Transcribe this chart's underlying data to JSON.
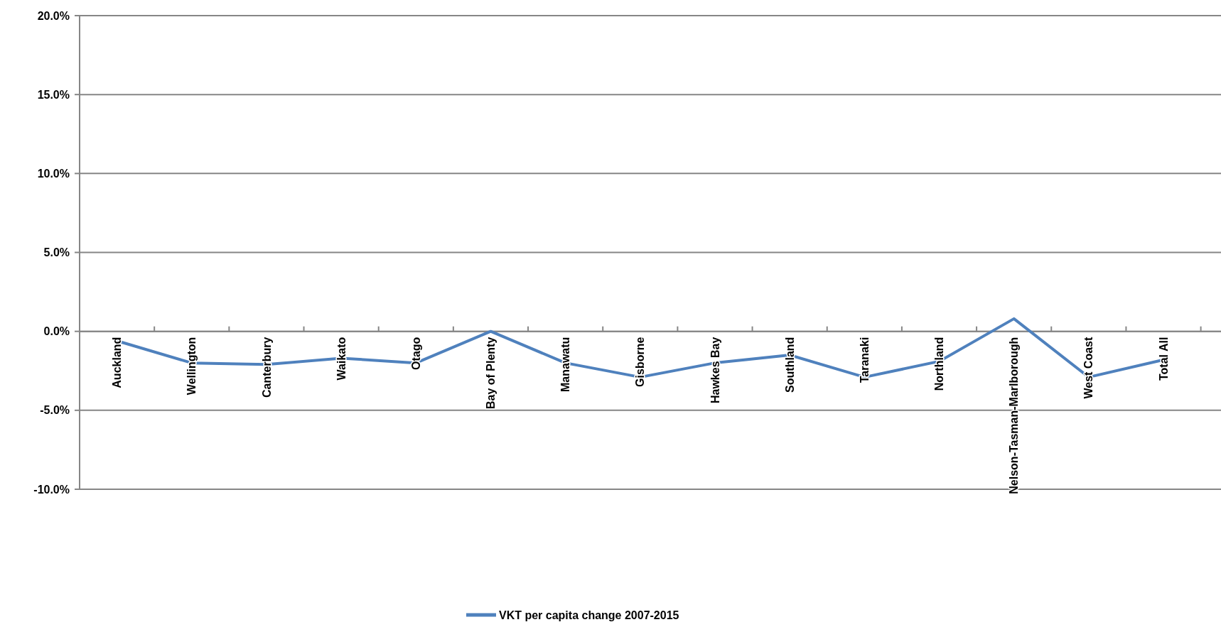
{
  "chart_data": {
    "type": "line",
    "categories": [
      "Auckland",
      "Wellington",
      "Canterbury",
      "Waikato",
      "Otago",
      "Bay of Plenty",
      "Manawatu",
      "Gisborne",
      "Hawkes Bay",
      "Southland",
      "Taranaki",
      "Northland",
      "Nelson-Tasman-Marlborough",
      "West Coast",
      "Total All"
    ],
    "series": [
      {
        "name": "VKT per capita change 2007-2015",
        "color": "#4f81bd",
        "values": [
          -0.6,
          -2.0,
          -2.1,
          -1.7,
          -2.0,
          0.0,
          -2.0,
          -2.9,
          -2.0,
          -1.5,
          -2.9,
          -1.9,
          0.8,
          -2.9,
          -1.8
        ]
      }
    ],
    "ylim": [
      -10,
      20
    ],
    "yticks": [
      {
        "value": -10,
        "label": "-10.0%"
      },
      {
        "value": -5,
        "label": "-5.0%"
      },
      {
        "value": 0,
        "label": "0.0%"
      },
      {
        "value": 5,
        "label": "5.0%"
      },
      {
        "value": 10,
        "label": "10.0%"
      },
      {
        "value": 15,
        "label": "15.0%"
      },
      {
        "value": 20,
        "label": "20.0%"
      }
    ],
    "grid": "y",
    "legend": "bottom",
    "marker": "none",
    "line_style": "solid"
  }
}
